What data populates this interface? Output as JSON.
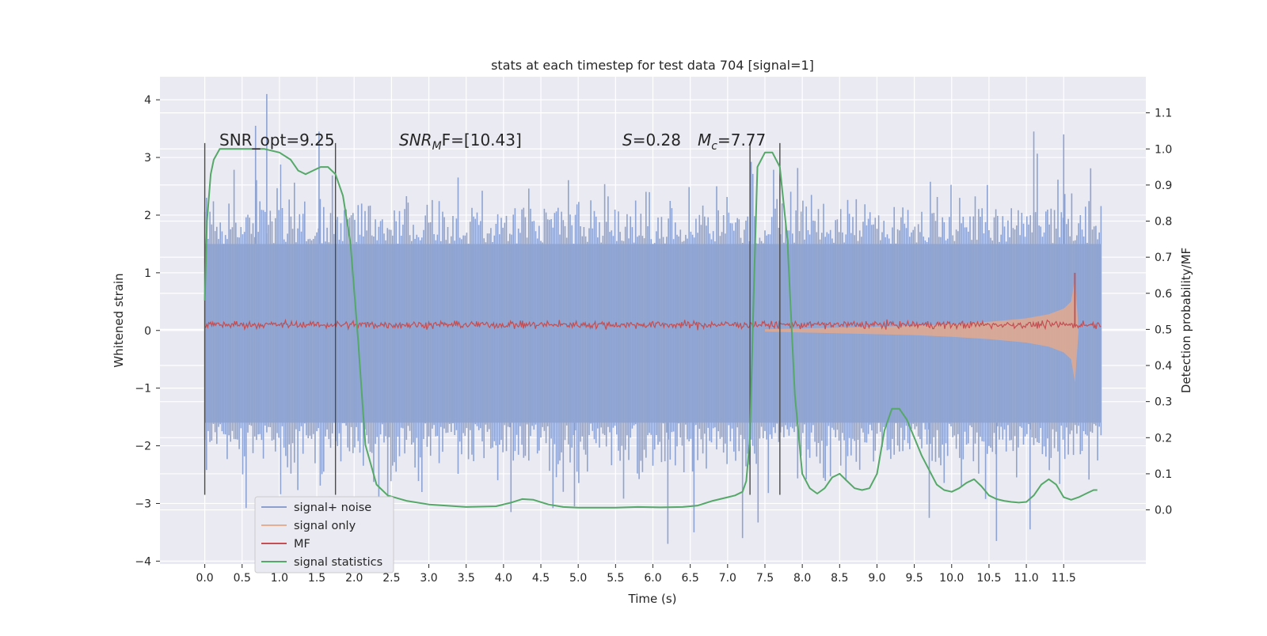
{
  "chart_data": {
    "type": "line",
    "title": "stats at each timestep for test data 704 [signal=1]",
    "xlabel": "Time (s)",
    "ylabel": "Whitened strain",
    "y2label": "Detection probability/MF",
    "xlim": [
      -0.6,
      12.6
    ],
    "ylim": [
      -4.05,
      4.4
    ],
    "y2lim": [
      -0.15,
      1.2
    ],
    "xticks": [
      0.0,
      0.5,
      1.0,
      1.5,
      2.0,
      2.5,
      3.0,
      3.5,
      4.0,
      4.5,
      5.0,
      5.5,
      6.0,
      6.5,
      7.0,
      7.5,
      8.0,
      8.5,
      9.0,
      9.5,
      10.0,
      10.5,
      11.0,
      11.5
    ],
    "xtick_labels": [
      "0.0",
      "0.5",
      "1.0",
      "1.5",
      "2.0",
      "2.5",
      "3.0",
      "3.5",
      "4.0",
      "4.5",
      "5.0",
      "5.5",
      "6.0",
      "6.5",
      "7.0",
      "7.5",
      "8.0",
      "8.5",
      "9.0",
      "9.5",
      "10.0",
      "10.5",
      "11.0",
      "11.5"
    ],
    "yticks": [
      4,
      3,
      2,
      1,
      0,
      -1,
      -2,
      -3,
      -4
    ],
    "ytick_labels": [
      "4",
      "3",
      "2",
      "1",
      "0",
      "−1",
      "−2",
      "−3",
      "−4"
    ],
    "y2ticks": [
      1.1,
      1.0,
      0.9,
      0.8,
      0.7,
      0.6,
      0.5,
      0.4,
      0.3,
      0.2,
      0.1,
      0.0
    ],
    "y2tick_labels": [
      "1.1",
      "1.0",
      "0.9",
      "0.8",
      "0.7",
      "0.6",
      "0.5",
      "0.4",
      "0.3",
      "0.2",
      "0.1",
      "0.0"
    ],
    "grid": true,
    "legend_position": "lower-left",
    "annotations": {
      "snr_opt": "SNR_opt=9.25",
      "snr_mf_main": "SNR",
      "snr_mf_sub": "M",
      "snr_mf_tail": "F=[10.43]",
      "s_main": "S",
      "s_tail": "=0.28",
      "mc_main": "M",
      "mc_sub": "c",
      "mc_tail": "=7.77"
    },
    "vertical_markers": [
      0.0,
      1.75,
      7.3,
      7.7
    ],
    "series": [
      {
        "name": "signal+ noise",
        "color": "#4c72b0",
        "axis": "left",
        "x_range": [
          0.0,
          12.0
        ],
        "typical_envelope": [
          -1.6,
          1.5
        ],
        "peak_values": [
          [
            0.83,
            4.1
          ],
          [
            0.68,
            3.55
          ],
          [
            1.53,
            3.45
          ],
          [
            11.1,
            3.45
          ],
          [
            11.5,
            3.4
          ],
          [
            7.2,
            -3.6
          ],
          [
            6.2,
            -3.7
          ],
          [
            6.55,
            -3.5
          ],
          [
            10.6,
            -3.65
          ],
          [
            11.05,
            -3.45
          ],
          [
            4.1,
            -3.15
          ],
          [
            2.45,
            -3.1
          ],
          [
            4.95,
            -3.05
          ],
          [
            9.7,
            -3.25
          ]
        ]
      },
      {
        "name": "signal only",
        "color": "#dd8452",
        "axis": "left",
        "x": [
          7.5,
          8.5,
          9.5,
          10.0,
          10.5,
          11.0,
          11.3,
          11.5,
          11.6,
          11.65,
          11.7
        ],
        "amplitude": [
          0.02,
          0.05,
          0.08,
          0.11,
          0.15,
          0.21,
          0.28,
          0.38,
          0.5,
          0.9,
          0.0
        ]
      },
      {
        "name": "MF",
        "color": "#c44e52",
        "axis": "left",
        "x_range": [
          0.0,
          12.0
        ],
        "center": 0.1,
        "noise_amplitude": 0.1,
        "peak": [
          11.65,
          1.0
        ]
      },
      {
        "name": "signal statistics",
        "color": "#55a868",
        "axis": "right",
        "x": [
          0.0,
          0.03,
          0.08,
          0.12,
          0.2,
          0.3,
          0.5,
          0.8,
          1.0,
          1.15,
          1.25,
          1.35,
          1.45,
          1.55,
          1.65,
          1.75,
          1.85,
          1.95,
          2.05,
          2.15,
          2.3,
          2.45,
          2.7,
          3.0,
          3.5,
          3.9,
          4.1,
          4.25,
          4.4,
          4.6,
          4.8,
          5.0,
          5.5,
          5.8,
          6.1,
          6.4,
          6.6,
          6.8,
          7.0,
          7.1,
          7.2,
          7.25,
          7.3,
          7.35,
          7.4,
          7.5,
          7.6,
          7.7,
          7.8,
          7.9,
          8.0,
          8.1,
          8.2,
          8.3,
          8.4,
          8.5,
          8.6,
          8.7,
          8.8,
          8.9,
          9.0,
          9.1,
          9.2,
          9.3,
          9.4,
          9.5,
          9.6,
          9.7,
          9.8,
          9.9,
          10.0,
          10.1,
          10.2,
          10.3,
          10.4,
          10.5,
          10.6,
          10.7,
          10.8,
          10.9,
          11.0,
          11.1,
          11.2,
          11.3,
          11.4,
          11.5,
          11.6,
          11.7,
          11.8,
          11.9,
          11.95
        ],
        "y": [
          0.58,
          0.8,
          0.93,
          0.97,
          1.0,
          1.0,
          1.0,
          1.0,
          0.99,
          0.97,
          0.94,
          0.93,
          0.94,
          0.95,
          0.95,
          0.93,
          0.87,
          0.74,
          0.48,
          0.18,
          0.07,
          0.04,
          0.025,
          0.015,
          0.008,
          0.01,
          0.02,
          0.03,
          0.028,
          0.015,
          0.008,
          0.006,
          0.006,
          0.008,
          0.007,
          0.008,
          0.012,
          0.025,
          0.035,
          0.04,
          0.05,
          0.08,
          0.2,
          0.6,
          0.95,
          0.99,
          0.99,
          0.95,
          0.75,
          0.32,
          0.1,
          0.06,
          0.045,
          0.06,
          0.09,
          0.1,
          0.08,
          0.06,
          0.055,
          0.06,
          0.1,
          0.22,
          0.28,
          0.28,
          0.25,
          0.2,
          0.15,
          0.11,
          0.07,
          0.055,
          0.05,
          0.06,
          0.075,
          0.085,
          0.065,
          0.04,
          0.03,
          0.025,
          0.022,
          0.02,
          0.022,
          0.04,
          0.07,
          0.085,
          0.07,
          0.035,
          0.028,
          0.035,
          0.045,
          0.055,
          0.055
        ]
      }
    ]
  }
}
